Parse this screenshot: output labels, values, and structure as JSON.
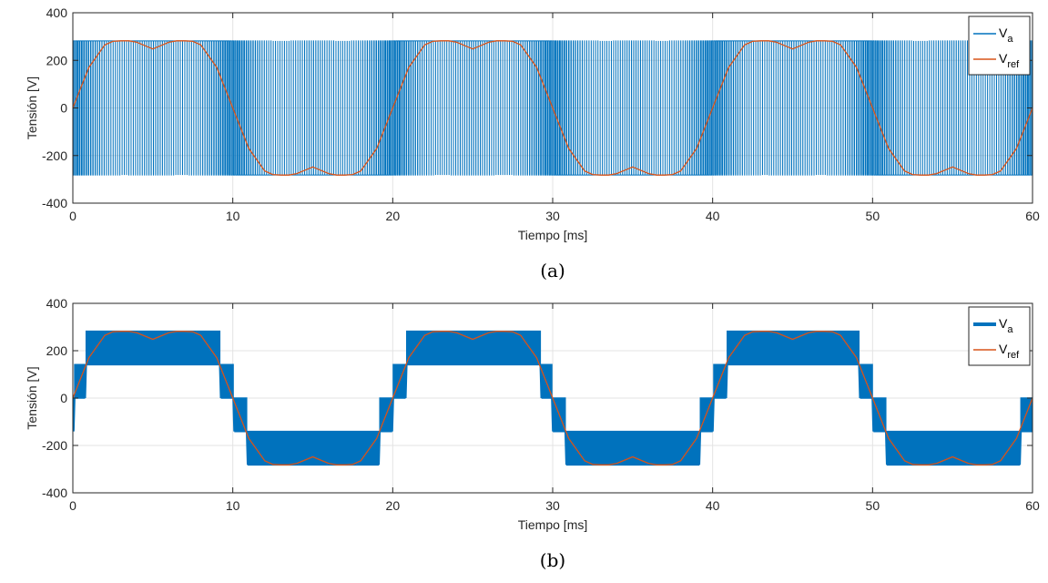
{
  "chart_data": [
    {
      "type": "line",
      "caption": "(a)",
      "xlabel": "Tiempo [ms]",
      "ylabel": "Tensión [V]",
      "xlim": [
        0,
        60
      ],
      "ylim": [
        -400,
        400
      ],
      "xticks": [
        "0",
        "10",
        "20",
        "30",
        "40",
        "50",
        "60"
      ],
      "yticks": [
        "-400",
        "-200",
        "0",
        "200",
        "400"
      ],
      "grid": true,
      "legend_position": "top-right",
      "signal": "two-level PWM",
      "vdc_half": 282,
      "series": [
        {
          "name": "V",
          "subscript": "a",
          "color": "#0072BD",
          "values": [
            -282,
            282
          ]
        },
        {
          "name": "V",
          "subscript": "ref",
          "color": "#D95319",
          "x": [
            0,
            1,
            2,
            2.5,
            3,
            3.5,
            4,
            4.5,
            5,
            5.5,
            6,
            6.5,
            7,
            7.5,
            8,
            9,
            10
          ],
          "y": [
            0,
            170,
            265,
            280,
            282,
            282,
            276,
            262,
            248,
            262,
            276,
            282,
            282,
            280,
            265,
            170,
            0
          ]
        }
      ]
    },
    {
      "type": "line",
      "caption": "(b)",
      "xlabel": "Tiempo [ms]",
      "ylabel": "Tensión [V]",
      "xlim": [
        0,
        60
      ],
      "ylim": [
        -400,
        400
      ],
      "xticks": [
        "0",
        "10",
        "20",
        "30",
        "40",
        "50",
        "60"
      ],
      "yticks": [
        "-400",
        "-200",
        "0",
        "200",
        "400"
      ],
      "grid": true,
      "legend_position": "top-right",
      "signal": "multilevel staircase PWM",
      "levels": [
        -282,
        -141,
        0,
        141,
        282
      ],
      "series": [
        {
          "name": "V",
          "subscript": "a",
          "color": "#0072BD",
          "values": [
            -282,
            -141,
            0,
            141,
            282
          ]
        },
        {
          "name": "V",
          "subscript": "ref",
          "color": "#D95319",
          "x": [
            0,
            1,
            2,
            2.5,
            3,
            3.5,
            4,
            4.5,
            5,
            5.5,
            6,
            6.5,
            7,
            7.5,
            8,
            9,
            10
          ],
          "y": [
            0,
            170,
            265,
            280,
            282,
            282,
            276,
            262,
            248,
            262,
            276,
            282,
            282,
            280,
            265,
            170,
            0
          ]
        }
      ]
    }
  ]
}
